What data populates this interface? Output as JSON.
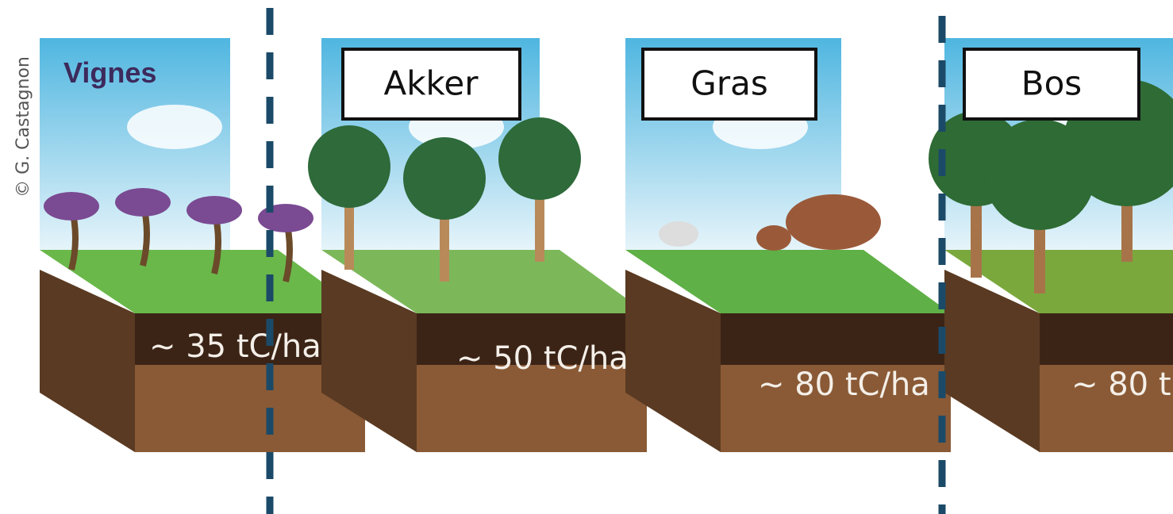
{
  "credit": "© G. Castagnon",
  "panels": [
    {
      "label": "Vignes",
      "carbon": "~ 35 tC/ha"
    },
    {
      "label": "Akker",
      "carbon": "~ 50 tC/ha"
    },
    {
      "label": "Gras",
      "carbon": "~ 80 tC/ha"
    },
    {
      "label": "Bos",
      "carbon": "~ 80 t"
    }
  ]
}
